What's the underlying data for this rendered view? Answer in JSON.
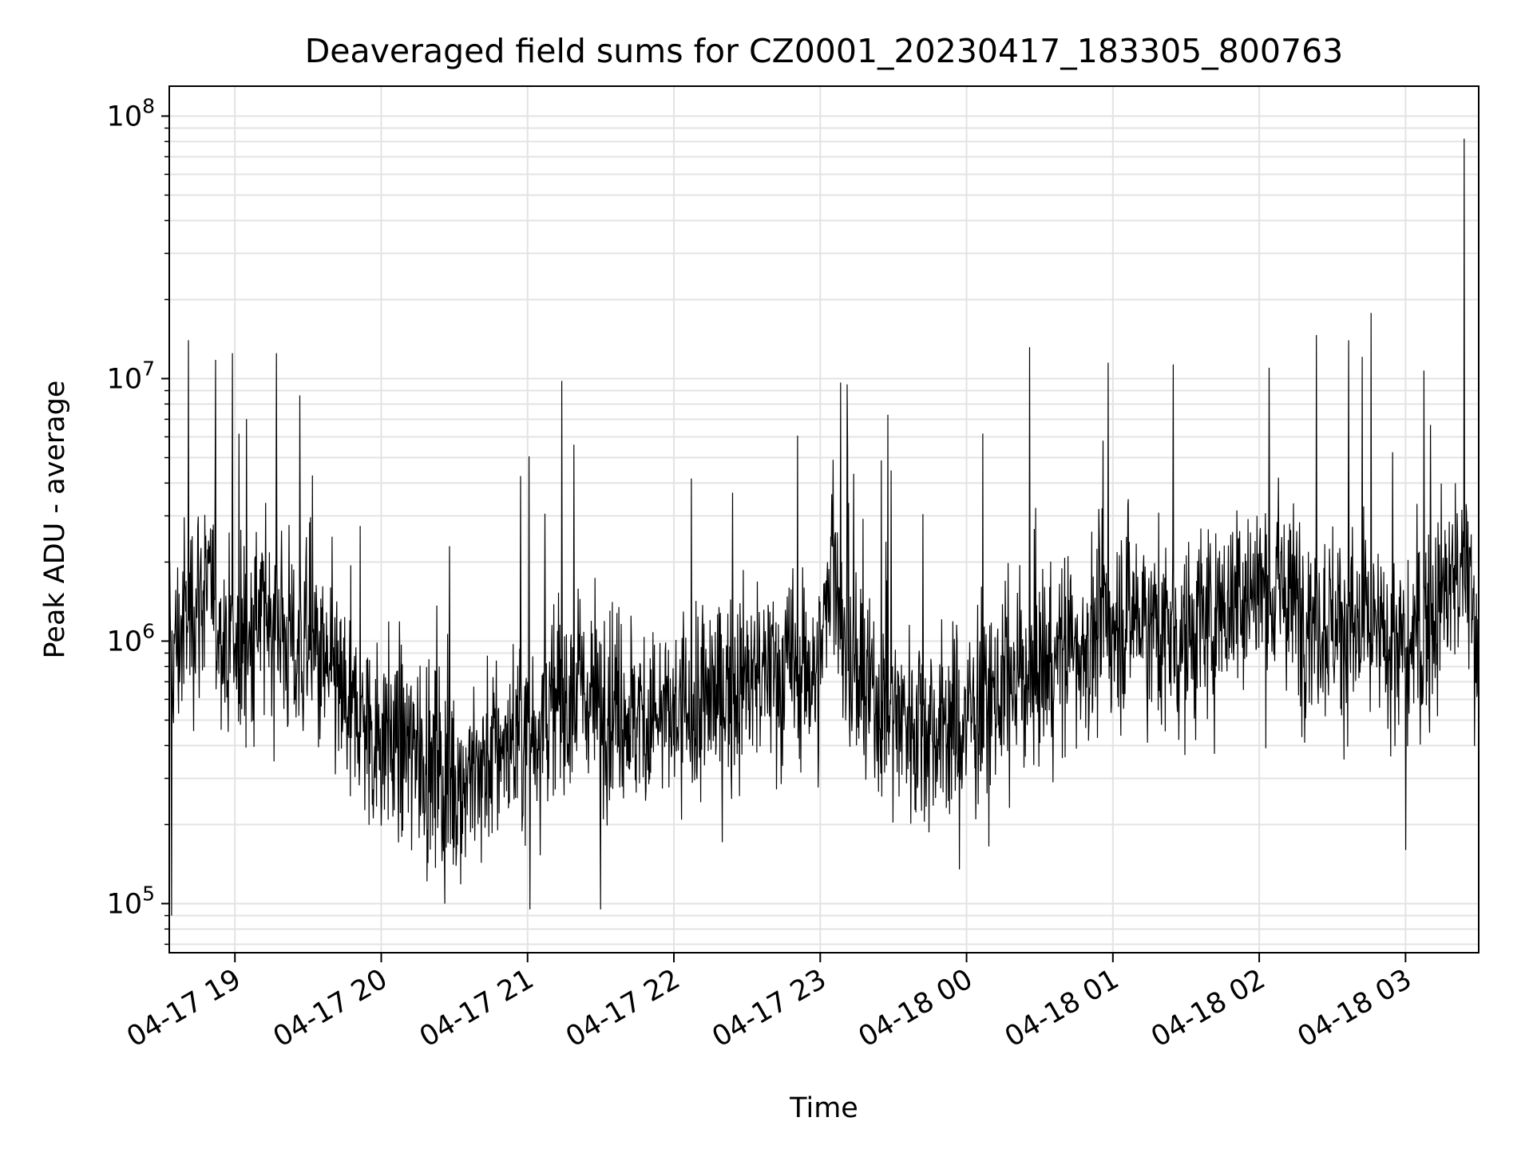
{
  "chart_data": {
    "type": "line",
    "title": "Deaveraged field sums for CZ0001_20230417_183305_800763",
    "xlabel": "Time",
    "ylabel": "Peak ADU - average",
    "xlim": [
      "2023-04-17 18:33:05",
      "2023-04-18 03:30:00"
    ],
    "ylim": [
      65000,
      130000000
    ],
    "yscale": "log",
    "grid": true,
    "x_tick_labels": [
      "04-17 19",
      "04-17 20",
      "04-17 21",
      "04-17 22",
      "04-17 23",
      "04-18 00",
      "04-18 01",
      "04-18 02",
      "04-18 03"
    ],
    "x_tick_times": [
      "2023-04-17 19:00",
      "2023-04-17 20:00",
      "2023-04-17 21:00",
      "2023-04-17 22:00",
      "2023-04-17 23:00",
      "2023-04-18 00:00",
      "2023-04-18 01:00",
      "2023-04-18 02:00",
      "2023-04-18 03:00"
    ],
    "y_tick_base": "10",
    "y_tick_exponents": [
      "5",
      "6",
      "7",
      "8"
    ],
    "series": [
      {
        "name": "",
        "color": "#000000",
        "x": [
          "2023-04-17 18:35",
          "2023-04-17 18:40",
          "2023-04-17 18:46",
          "2023-04-17 18:50",
          "2023-04-17 18:55",
          "2023-04-17 19:00",
          "2023-04-17 19:05",
          "2023-04-17 19:10",
          "2023-04-17 19:15",
          "2023-04-17 19:20",
          "2023-04-17 19:25",
          "2023-04-17 19:30",
          "2023-04-17 19:35",
          "2023-04-17 19:40",
          "2023-04-17 19:45",
          "2023-04-17 19:50",
          "2023-04-17 19:55",
          "2023-04-17 20:00",
          "2023-04-17 20:10",
          "2023-04-17 20:20",
          "2023-04-17 20:30",
          "2023-04-17 20:40",
          "2023-04-17 20:50",
          "2023-04-17 21:00",
          "2023-04-17 21:10",
          "2023-04-17 21:14",
          "2023-04-17 21:20",
          "2023-04-17 21:30",
          "2023-04-17 21:40",
          "2023-04-17 21:50",
          "2023-04-17 22:00",
          "2023-04-17 22:10",
          "2023-04-17 22:20",
          "2023-04-17 22:30",
          "2023-04-17 22:40",
          "2023-04-17 22:50",
          "2023-04-17 23:00",
          "2023-04-17 23:05",
          "2023-04-17 23:10",
          "2023-04-17 23:15",
          "2023-04-17 23:20",
          "2023-04-17 23:30",
          "2023-04-17 23:40",
          "2023-04-17 23:50",
          "2023-04-18 00:00",
          "2023-04-18 00:10",
          "2023-04-18 00:20",
          "2023-04-18 00:30",
          "2023-04-18 00:40",
          "2023-04-18 00:50",
          "2023-04-18 01:00",
          "2023-04-18 01:10",
          "2023-04-18 01:20",
          "2023-04-18 01:30",
          "2023-04-18 01:40",
          "2023-04-18 01:50",
          "2023-04-18 02:00",
          "2023-04-18 02:10",
          "2023-04-18 02:20",
          "2023-04-18 02:30",
          "2023-04-18 02:40",
          "2023-04-18 02:50",
          "2023-04-18 03:00",
          "2023-04-18 03:05",
          "2023-04-18 03:10",
          "2023-04-18 03:15",
          "2023-04-18 03:20",
          "2023-04-18 03:25",
          "2023-04-18 03:29"
        ],
        "y": [
          900000,
          1200000,
          1600000,
          1500000,
          1100000,
          900000,
          1000000,
          1200000,
          1300000,
          1100000,
          900000,
          1000000,
          800000,
          700000,
          600000,
          500000,
          450000,
          450000,
          400000,
          350000,
          300000,
          320000,
          400000,
          450000,
          550000,
          600000,
          650000,
          600000,
          550000,
          500000,
          500000,
          550000,
          650000,
          700000,
          750000,
          800000,
          750000,
          2500000,
          900000,
          700000,
          600000,
          550000,
          500000,
          450000,
          500000,
          600000,
          700000,
          800000,
          900000,
          1000000,
          1200000,
          1300000,
          1100000,
          1000000,
          1200000,
          1500000,
          1600000,
          1500000,
          1300000,
          1200000,
          1100000,
          1000000,
          900000,
          1000000,
          1200000,
          1500000,
          1700000,
          1800000,
          1000000
        ],
        "spikes": [
          {
            "x": "2023-04-17 18:41",
            "y": 14000000
          },
          {
            "x": "2023-04-17 18:59",
            "y": 12500000
          },
          {
            "x": "2023-04-17 19:17",
            "y": 12500000
          },
          {
            "x": "2023-04-17 20:28",
            "y": 2300000
          },
          {
            "x": "2023-04-17 21:14",
            "y": 9800000
          },
          {
            "x": "2023-04-17 23:11",
            "y": 9500000
          },
          {
            "x": "2023-04-18 00:58",
            "y": 11500000
          },
          {
            "x": "2023-04-18 02:04",
            "y": 11000000
          },
          {
            "x": "2023-04-18 03:24",
            "y": 82000000
          }
        ],
        "dips": [
          {
            "x": "2023-04-17 18:34",
            "y": 90000
          },
          {
            "x": "2023-04-17 20:26",
            "y": 100000
          },
          {
            "x": "2023-04-17 21:01",
            "y": 95000
          },
          {
            "x": "2023-04-17 21:30",
            "y": 95000
          },
          {
            "x": "2023-04-17 23:57",
            "y": 135000
          },
          {
            "x": "2023-04-18 03:00",
            "y": 160000
          }
        ]
      }
    ]
  }
}
